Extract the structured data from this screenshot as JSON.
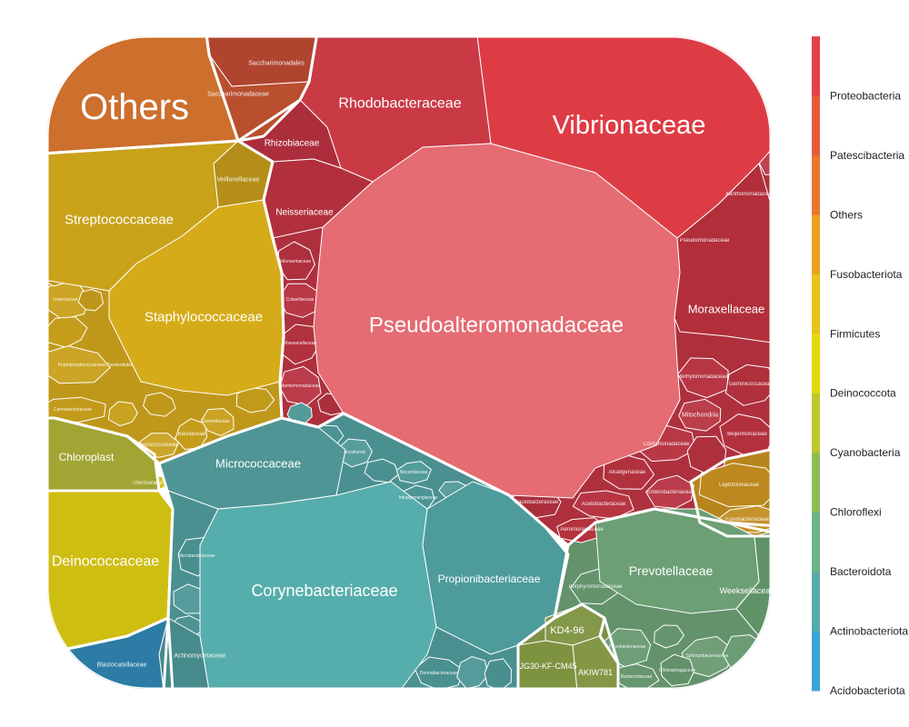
{
  "chart_data": {
    "type": "voronoi-treemap",
    "legend": {
      "placement": "right",
      "entries": [
        {
          "name": "Proteobacteria",
          "color": "#e2414a"
        },
        {
          "name": "Patescibacteria",
          "color": "#e65a3c"
        },
        {
          "name": "Others",
          "color": "#e9762f"
        },
        {
          "name": "Fusobacteriota",
          "color": "#e9a220"
        },
        {
          "name": "Firmicutes",
          "color": "#e8c11a"
        },
        {
          "name": "Deinococcota",
          "color": "#e4d90c"
        },
        {
          "name": "Cyanobacteria",
          "color": "#bcc92d"
        },
        {
          "name": "Chloroflexi",
          "color": "#8fbd53"
        },
        {
          "name": "Bacteroidota",
          "color": "#6cb586"
        },
        {
          "name": "Actinobacteriota",
          "color": "#58aaa9"
        },
        {
          "name": "Acidobacteriota",
          "color": "#3aa6d6"
        }
      ]
    },
    "families": [
      {
        "name": "Others",
        "phylum": "Others",
        "font": 40
      },
      {
        "name": "Saccharimonadales",
        "phylum": "Patescibacteria",
        "font": 7
      },
      {
        "name": "Saccharimonadaceae",
        "phylum": "Patescibacteria",
        "font": 7
      },
      {
        "name": "Rhodobacteraceae",
        "phylum": "Proteobacteria",
        "font": 16
      },
      {
        "name": "Vibrionaceae",
        "phylum": "Proteobacteria",
        "font": 29
      },
      {
        "name": "Pseudoalteromonadaceae",
        "phylum": "Proteobacteria",
        "font": 24
      },
      {
        "name": "Rhizobiaceae",
        "phylum": "Proteobacteria",
        "font": 10
      },
      {
        "name": "Neisseriaceae",
        "phylum": "Proteobacteria",
        "font": 10
      },
      {
        "name": "Moraxellaceae",
        "phylum": "Proteobacteria",
        "font": 13
      },
      {
        "name": "Xanthomonadaceae",
        "phylum": "Proteobacteria",
        "font": 6
      },
      {
        "name": "Pseudomonadaceae",
        "phylum": "Proteobacteria",
        "font": 6
      },
      {
        "name": "Methylomonadaceae",
        "phylum": "Proteobacteria",
        "font": 6
      },
      {
        "name": "Geminicoccaceae",
        "phylum": "Proteobacteria",
        "font": 6
      },
      {
        "name": "Mitochondria",
        "phylum": "Proteobacteria",
        "font": 7
      },
      {
        "name": "Beijerinckiaceae",
        "phylum": "Proteobacteria",
        "font": 6
      },
      {
        "name": "Comamonadaceae",
        "phylum": "Proteobacteria",
        "font": 6
      },
      {
        "name": "Alcaligenaceae",
        "phylum": "Proteobacteria",
        "font": 6
      },
      {
        "name": "Enterobacteriaceae",
        "phylum": "Proteobacteria",
        "font": 6
      },
      {
        "name": "Caulobacteraceae",
        "phylum": "Proteobacteria",
        "font": 6
      },
      {
        "name": "Acetobacteraceae",
        "phylum": "Proteobacteria",
        "font": 6
      },
      {
        "name": "Aeromonadaceae",
        "phylum": "Proteobacteria",
        "font": 6
      },
      {
        "name": "Idiomarinaceae",
        "phylum": "Proteobacteria",
        "font": 5
      },
      {
        "name": "Colwelliaceae",
        "phylum": "Proteobacteria",
        "font": 5
      },
      {
        "name": "Shewanellaceae",
        "phylum": "Proteobacteria",
        "font": 5
      },
      {
        "name": "Marinomonadaceae",
        "phylum": "Proteobacteria",
        "font": 5
      },
      {
        "name": "Leptotrichiaceae",
        "phylum": "Fusobacteriota",
        "font": 6
      },
      {
        "name": "Fusobacteriaceae",
        "phylum": "Fusobacteriota",
        "font": 6
      },
      {
        "name": "Streptococcaceae",
        "phylum": "Firmicutes",
        "font": 15
      },
      {
        "name": "Staphylococcaceae",
        "phylum": "Firmicutes",
        "font": 15
      },
      {
        "name": "Veillonellaceae",
        "phylum": "Firmicutes",
        "font": 7
      },
      {
        "name": "Listeriaceae",
        "phylum": "Firmicutes",
        "font": 5
      },
      {
        "name": "Peptostreptococcaceae-Tissierellales",
        "phylum": "Firmicutes",
        "font": 5
      },
      {
        "name": "Carnobacteriaceae",
        "phylum": "Firmicutes",
        "font": 5
      },
      {
        "name": "Aerococcaceae",
        "phylum": "Firmicutes",
        "font": 6
      },
      {
        "name": "Bacillaceae",
        "phylum": "Firmicutes",
        "font": 6
      },
      {
        "name": "Gemellaceae",
        "phylum": "Firmicutes",
        "font": 5
      },
      {
        "name": "Deinococcaceae",
        "phylum": "Deinococcota",
        "font": 16
      },
      {
        "name": "Thermaceae",
        "phylum": "Deinococcota",
        "font": 6
      },
      {
        "name": "Chloroplast",
        "phylum": "Cyanobacteria",
        "font": 12
      },
      {
        "name": "Micrococcaceae",
        "phylum": "Actinobacteriota",
        "font": 13
      },
      {
        "name": "Corynebacteriaceae",
        "phylum": "Actinobacteriota",
        "font": 18
      },
      {
        "name": "Propionibacteriaceae",
        "phylum": "Actinobacteriota",
        "font": 12
      },
      {
        "name": "Actinomycetaceae",
        "phylum": "Actinobacteriota",
        "font": 7
      },
      {
        "name": "Dermabacteraceae",
        "phylum": "Actinobacteriota",
        "font": 5
      },
      {
        "name": "Microbacteriaceae",
        "phylum": "Actinobacteriota",
        "font": 5
      },
      {
        "name": "Nocardiaceae",
        "phylum": "Actinobacteriota",
        "font": 5
      },
      {
        "name": "uncultured",
        "phylum": "Actinobacteriota",
        "font": 5
      },
      {
        "name": "Intrasporangiaceae",
        "phylum": "Actinobacteriota",
        "font": 5
      },
      {
        "name": "Prevotellaceae",
        "phylum": "Bacteroidota",
        "font": 14
      },
      {
        "name": "Weeksellaceae",
        "phylum": "Bacteroidota",
        "font": 9
      },
      {
        "name": "Porphyromonadaceae",
        "phylum": "Bacteroidota",
        "font": 6
      },
      {
        "name": "Flavobacteriaceae",
        "phylum": "Bacteroidota",
        "font": 5
      },
      {
        "name": "Bacteroidaceae",
        "phylum": "Bacteroidota",
        "font": 5
      },
      {
        "name": "Sphingobacteriaceae",
        "phylum": "Bacteroidota",
        "font": 5
      },
      {
        "name": "Chitinophagaceae",
        "phylum": "Bacteroidota",
        "font": 5
      },
      {
        "name": "KD4-96",
        "phylum": "Chloroflexi",
        "font": 11
      },
      {
        "name": "JG30-KF-CM45",
        "phylum": "Chloroflexi",
        "font": 9
      },
      {
        "name": "AKIW781",
        "phylum": "Chloroflexi",
        "font": 9
      },
      {
        "name": "Blastocatellaceae",
        "phylum": "Acidobacteriota",
        "font": 7
      }
    ]
  }
}
